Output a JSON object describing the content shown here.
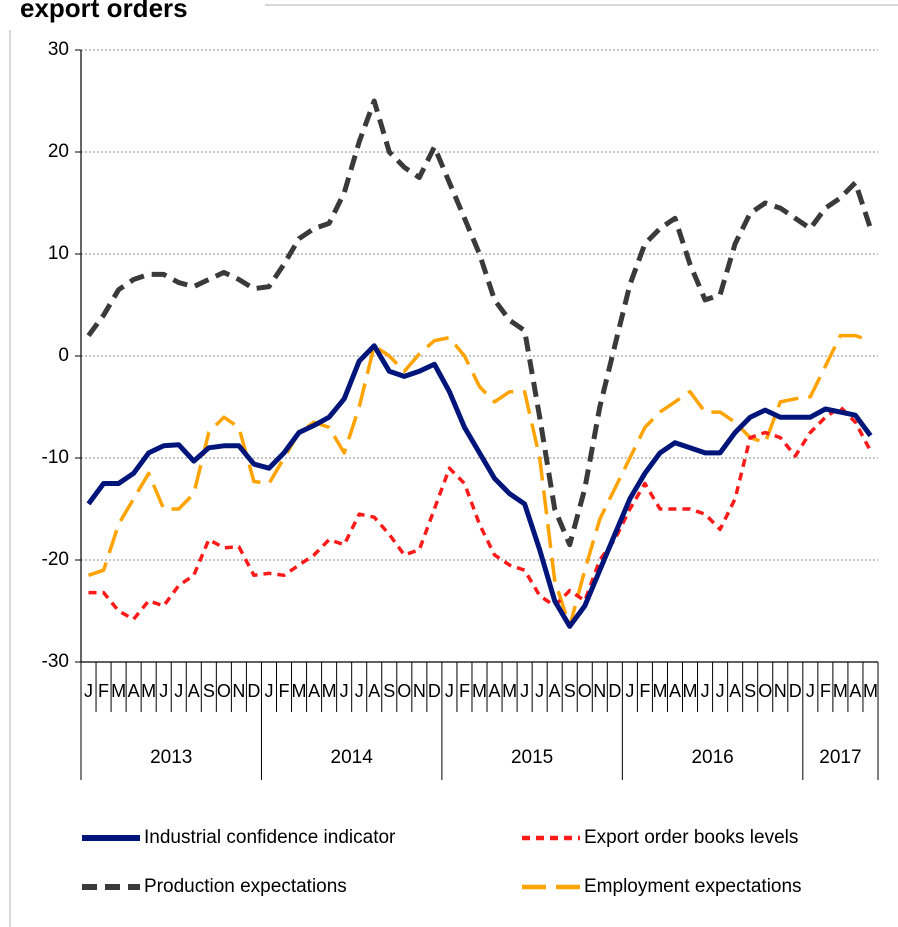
{
  "chart_data": {
    "type": "line",
    "title": "export orders",
    "categories": [
      "J",
      "F",
      "M",
      "A",
      "M",
      "J",
      "J",
      "A",
      "S",
      "O",
      "N",
      "D",
      "J",
      "F",
      "M",
      "A",
      "M",
      "J",
      "J",
      "A",
      "S",
      "O",
      "N",
      "D",
      "J",
      "F",
      "M",
      "A",
      "M",
      "J",
      "J",
      "A",
      "S",
      "O",
      "N",
      "D",
      "J",
      "F",
      "M",
      "A",
      "M",
      "J",
      "J",
      "A",
      "S",
      "O",
      "N",
      "D",
      "J",
      "F",
      "M",
      "A",
      "M"
    ],
    "year_labels": [
      "2013",
      "2014",
      "2015",
      "2016",
      "2017"
    ],
    "series": [
      {
        "name": "Industrial confidence indicator",
        "color": "#00157a",
        "values": [
          -14.5,
          -12.5,
          -12.5,
          -11.5,
          -9.5,
          -8.8,
          -8.7,
          -10.3,
          -9,
          -8.8,
          -8.8,
          -10.6,
          -11,
          -9.5,
          -7.5,
          -6.8,
          -6,
          -4.2,
          -0.5,
          1,
          -1.5,
          -2,
          -1.5,
          -0.8,
          -3.5,
          -7,
          -9.5,
          -12,
          -13.5,
          -14.5,
          -19,
          -24,
          -26.5,
          -24.5,
          -21,
          -17.5,
          -14,
          -11.5,
          -9.5,
          -8.5,
          -9,
          -9.5,
          -9.5,
          -7.5,
          -6,
          -5.3,
          -6,
          -6,
          -6,
          -5.2,
          -5.5,
          -5.8,
          -7.8
        ]
      },
      {
        "name": "Export order books levels",
        "color": "#ff1a1a",
        "values": [
          -23.2,
          -23.2,
          -25,
          -25.8,
          -24,
          -24.5,
          -22.5,
          -21.5,
          -18,
          -18.8,
          -18.7,
          -21.5,
          -21.3,
          -21.5,
          -20.5,
          -19.5,
          -18,
          -18.5,
          -15.5,
          -15.8,
          -17.5,
          -19.5,
          -19,
          -15,
          -11,
          -12.5,
          -16.5,
          -19.5,
          -20.5,
          -21,
          -23.5,
          -24.5,
          -23,
          -24,
          -20,
          -18,
          -15,
          -12.5,
          -15,
          -15,
          -15,
          -15.5,
          -17,
          -14,
          -8,
          -7.5,
          -8,
          -9.8,
          -7.5,
          -6,
          -5,
          -6.5,
          -9.3
        ]
      },
      {
        "name": "Production expectations",
        "color": "#3a3a3a",
        "values": [
          2,
          4,
          6.5,
          7.5,
          8,
          8,
          7.2,
          6.8,
          7.5,
          8.2,
          7.5,
          6.6,
          6.8,
          9,
          11.5,
          12.5,
          13,
          16,
          21,
          25,
          20,
          18.5,
          17.5,
          20.5,
          17,
          13.5,
          10,
          5.5,
          3.5,
          2.5,
          -6,
          -15,
          -18.5,
          -13,
          -5,
          1,
          7,
          11,
          12.5,
          13.5,
          9,
          5.5,
          6,
          11,
          14,
          15,
          14.5,
          13.5,
          12.5,
          14.5,
          15.5,
          17,
          12.5
        ]
      },
      {
        "name": "Employment expectations",
        "color": "#ffa300",
        "values": [
          -21.5,
          -21,
          -16.5,
          -14,
          -11.5,
          -15,
          -15,
          -13.5,
          -7.5,
          -6,
          -7,
          -12.3,
          -12.5,
          -10,
          -7.5,
          -6.5,
          -7,
          -9.5,
          -5,
          1,
          0,
          -1.5,
          0.2,
          1.5,
          1.8,
          0,
          -3,
          -4.5,
          -3.5,
          -3.5,
          -10,
          -22,
          -26.5,
          -21,
          -16,
          -13,
          -10,
          -7,
          -5.5,
          -4.5,
          -3.5,
          -5.5,
          -5.5,
          -6.5,
          -8,
          -8.5,
          -4.5,
          -4.2,
          -4,
          -1,
          2,
          2,
          1.5
        ]
      }
    ],
    "ylim": [
      -30,
      30
    ],
    "yticks": [
      -30,
      -20,
      -10,
      0,
      10,
      20,
      30
    ],
    "grid": true
  }
}
